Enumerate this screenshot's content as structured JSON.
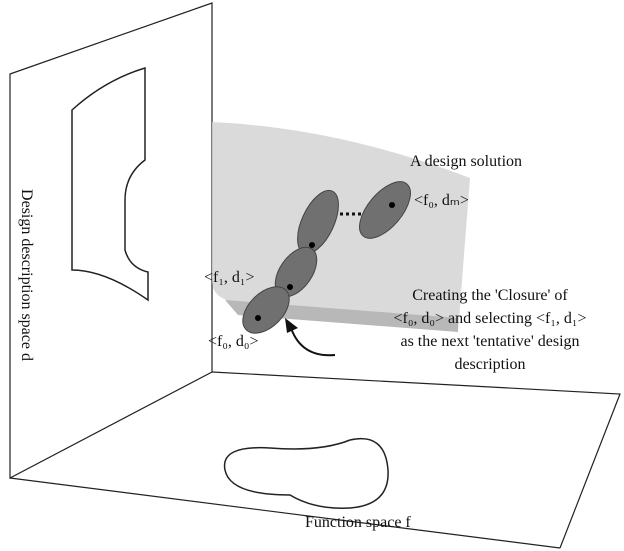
{
  "labels": {
    "vertical_axis": "Design description space d",
    "solution": "A design solution",
    "end_point": "<f₀, dₘ>",
    "next_point": "<f₁, d₁>",
    "start_point": "<f₀, d₀>",
    "note": [
      "Creating the 'Closure' of",
      "<f₀, d₀> and selecting  <f₁, d₁>",
      "as the next 'tentative' design",
      "description"
    ],
    "horizontal_axis": "Function space f"
  }
}
